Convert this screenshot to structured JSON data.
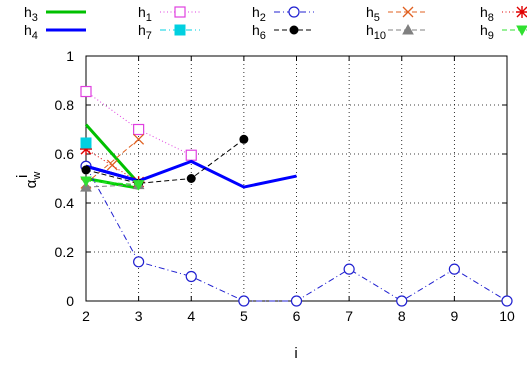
{
  "chart_data": {
    "type": "line",
    "xlabel": "i",
    "ylabel": "α",
    "ylabel_sup": "i",
    "ylabel_sub": "w",
    "xlim": [
      2,
      10
    ],
    "ylim": [
      0,
      1
    ],
    "x_ticks": [
      2,
      3,
      4,
      5,
      6,
      7,
      8,
      9,
      10
    ],
    "y_ticks": [
      0,
      0.2,
      0.4,
      0.6,
      0.8,
      1
    ],
    "y_tick_labels": [
      "0",
      "0.2",
      "0.4",
      "0.6",
      "0.8",
      "1"
    ],
    "grid": "dotted",
    "legend_placement": "top, outside plot area",
    "series": [
      {
        "id": "h3",
        "label_base": "h",
        "label_sub": "3",
        "color": "#00c000",
        "dash": "solid",
        "width": 3,
        "marker": "none",
        "x": [
          2,
          3
        ],
        "y": [
          0.72,
          0.48
        ]
      },
      {
        "id": "h1",
        "label_base": "h",
        "label_sub": "1",
        "color": "#00d000",
        "dash": "solid",
        "width": 3,
        "marker": "none",
        "x": [
          2,
          3
        ],
        "y": [
          0.5,
          0.46
        ]
      },
      {
        "id": "h2",
        "label_base": "h",
        "label_sub": "2",
        "color": "#e040e0",
        "dash": "dotted",
        "width": 1,
        "marker": "open-square",
        "x": [
          2,
          3,
          4
        ],
        "y": [
          0.855,
          0.7,
          0.595
        ]
      },
      {
        "id": "h5",
        "label_base": "h",
        "label_sub": "5",
        "color": "#2020d0",
        "dash": "dashdot",
        "width": 1,
        "marker": "open-circle",
        "x": [
          2,
          3,
          4,
          5,
          6,
          7,
          8,
          9,
          10
        ],
        "y": [
          0.55,
          0.16,
          0.1,
          0.0,
          0.0,
          0.13,
          0.0,
          0.13,
          0.0
        ]
      },
      {
        "id": "h8",
        "label_base": "h",
        "label_sub": "8",
        "color": "#e06020",
        "dash": "dashed",
        "width": 1,
        "marker": "x",
        "x": [
          2,
          3
        ],
        "y": [
          0.48,
          0.66
        ]
      },
      {
        "id": "h8b",
        "label_base": "",
        "label_sub": "",
        "color": "#e06020",
        "dash": "dashed",
        "width": 1,
        "marker": "x",
        "x": [
          2.5
        ],
        "y": [
          0.555
        ]
      },
      {
        "id": "h8_star",
        "label_base": "h",
        "label_sub": "8",
        "color": "#e00000",
        "dash": "dotted",
        "width": 1,
        "marker": "star",
        "x": [
          2,
          3
        ],
        "y": [
          0.62,
          0.485
        ]
      },
      {
        "id": "h4",
        "label_base": "h",
        "label_sub": "4",
        "color": "#0000ff",
        "dash": "solid",
        "width": 3,
        "marker": "none",
        "x": [
          2,
          3,
          4,
          5,
          6
        ],
        "y": [
          0.55,
          0.49,
          0.57,
          0.465,
          0.51
        ]
      },
      {
        "id": "h7",
        "label_base": "h",
        "label_sub": "7",
        "color": "#0000ff",
        "dash": "solid",
        "width": 3,
        "marker": "none",
        "x": [
          2,
          3
        ],
        "y": [
          0.55,
          0.49
        ]
      },
      {
        "id": "h6",
        "label_base": "h",
        "label_sub": "6",
        "color": "#00d0e0",
        "dash": "dashdot",
        "width": 1,
        "marker": "filled-square",
        "x": [
          2
        ],
        "y": [
          0.645
        ]
      },
      {
        "id": "h10",
        "label_base": "h",
        "label_sub": "10",
        "color": "#000000",
        "dash": "dashed",
        "width": 1,
        "marker": "filled-circle",
        "x": [
          2,
          3,
          4,
          5
        ],
        "y": [
          0.535,
          0.48,
          0.5,
          0.66
        ]
      },
      {
        "id": "h9g",
        "label_base": "h",
        "label_sub": "9",
        "color": "#808080",
        "dash": "dashed",
        "width": 1,
        "marker": "filled-triangle-up",
        "x": [
          2,
          3
        ],
        "y": [
          0.465,
          0.475
        ]
      },
      {
        "id": "h9",
        "label_base": "h",
        "label_sub": "9",
        "color": "#30e030",
        "dash": "dashed",
        "width": 1,
        "marker": "filled-triangle-down",
        "x": [
          2,
          3
        ],
        "y": [
          0.49,
          0.475
        ]
      }
    ],
    "legend": [
      {
        "row": 0,
        "col": 0,
        "text_base": "h",
        "text_sub": "3",
        "sample_of": "h3"
      },
      {
        "row": 0,
        "col": 1,
        "text_base": "h",
        "text_sub": "1",
        "sample_of": "h2"
      },
      {
        "row": 0,
        "col": 2,
        "text_base": "h",
        "text_sub": "2",
        "sample_of": "h5"
      },
      {
        "row": 0,
        "col": 3,
        "text_base": "h",
        "text_sub": "5",
        "sample_of": "h8"
      },
      {
        "row": 0,
        "col": 4,
        "text_base": "h",
        "text_sub": "8",
        "sample_of": "h8_star"
      },
      {
        "row": 1,
        "col": 0,
        "text_base": "h",
        "text_sub": "4",
        "sample_of": "h4"
      },
      {
        "row": 1,
        "col": 1,
        "text_base": "h",
        "text_sub": "7",
        "sample_of": "h6"
      },
      {
        "row": 1,
        "col": 2,
        "text_base": "h",
        "text_sub": "6",
        "sample_of": "h10"
      },
      {
        "row": 1,
        "col": 3,
        "text_base": "h",
        "text_sub": "10",
        "sample_of": "h9g"
      },
      {
        "row": 1,
        "col": 4,
        "text_base": "h",
        "text_sub": "9",
        "sample_of": "h9"
      }
    ]
  }
}
